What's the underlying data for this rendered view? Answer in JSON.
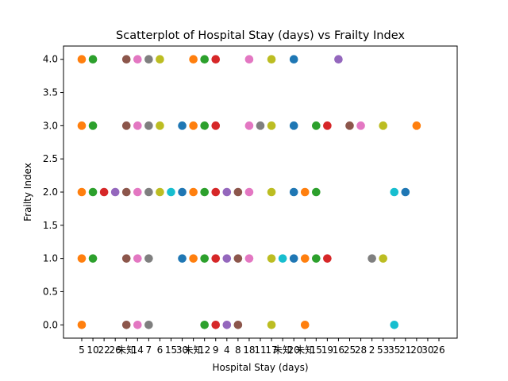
{
  "chart_data": {
    "type": "scatter",
    "title": "Scatterplot of Hospital Stay (days) vs Frailty Index",
    "xlabel": "Hospital Stay (days)",
    "ylabel": "Frailty Index",
    "x_categories": [
      "5",
      "10",
      "22",
      "26",
      "未知",
      "14",
      "7",
      "6",
      "15",
      "30",
      "未知",
      "12",
      "9",
      "4",
      "8",
      "18",
      "11",
      "17",
      "未知",
      "20",
      "未知",
      "15",
      "19",
      "16",
      "25",
      "28",
      "2",
      "53",
      "35",
      "21",
      "20",
      "30",
      "26"
    ],
    "x_tick_labels": [
      "5",
      "10",
      "22",
      "26",
      "未知",
      "14",
      "7",
      "6",
      "15",
      "30",
      "未知",
      "12",
      "9",
      "4",
      "8",
      "18",
      "11",
      "17",
      "未知",
      "20",
      "未知",
      "15",
      "19",
      "16",
      "25",
      "28",
      "2",
      "53",
      "35",
      "21",
      "20",
      "30",
      "26"
    ],
    "ylim": [
      -0.2,
      4.2
    ],
    "y_ticks": [
      "0.0",
      "0.5",
      "1.0",
      "1.5",
      "2.0",
      "2.5",
      "3.0",
      "3.5",
      "4.0"
    ],
    "y_tick_values": [
      0,
      0.5,
      1,
      1.5,
      2,
      2.5,
      3,
      3.5,
      4
    ],
    "colors": [
      "#1f77b4",
      "#ff7f0e",
      "#2ca02c",
      "#d62728",
      "#9467bd",
      "#8c564b",
      "#e377c2",
      "#7f7f7f",
      "#bcbd22",
      "#17becf"
    ],
    "points": [
      {
        "x": 0,
        "y": 4,
        "c": 1
      },
      {
        "x": 0,
        "y": 3,
        "c": 1
      },
      {
        "x": 0,
        "y": 2,
        "c": 1
      },
      {
        "x": 0,
        "y": 1,
        "c": 1
      },
      {
        "x": 0,
        "y": 0,
        "c": 1
      },
      {
        "x": 1,
        "y": 4,
        "c": 2
      },
      {
        "x": 1,
        "y": 3,
        "c": 2
      },
      {
        "x": 1,
        "y": 2,
        "c": 2
      },
      {
        "x": 1,
        "y": 1,
        "c": 2
      },
      {
        "x": 2,
        "y": 2,
        "c": 3
      },
      {
        "x": 3,
        "y": 2,
        "c": 4
      },
      {
        "x": 4,
        "y": 4,
        "c": 5
      },
      {
        "x": 4,
        "y": 3,
        "c": 5
      },
      {
        "x": 4,
        "y": 2,
        "c": 5
      },
      {
        "x": 4,
        "y": 1,
        "c": 5
      },
      {
        "x": 4,
        "y": 0,
        "c": 5
      },
      {
        "x": 5,
        "y": 4,
        "c": 6
      },
      {
        "x": 5,
        "y": 3,
        "c": 6
      },
      {
        "x": 5,
        "y": 2,
        "c": 6
      },
      {
        "x": 5,
        "y": 1,
        "c": 6
      },
      {
        "x": 5,
        "y": 0,
        "c": 6
      },
      {
        "x": 6,
        "y": 4,
        "c": 7
      },
      {
        "x": 6,
        "y": 3,
        "c": 7
      },
      {
        "x": 6,
        "y": 2,
        "c": 7
      },
      {
        "x": 6,
        "y": 1,
        "c": 7
      },
      {
        "x": 6,
        "y": 0,
        "c": 7
      },
      {
        "x": 7,
        "y": 4,
        "c": 8
      },
      {
        "x": 7,
        "y": 3,
        "c": 8
      },
      {
        "x": 7,
        "y": 2,
        "c": 8
      },
      {
        "x": 8,
        "y": 2,
        "c": 9
      },
      {
        "x": 9,
        "y": 3,
        "c": 0
      },
      {
        "x": 9,
        "y": 2,
        "c": 0
      },
      {
        "x": 9,
        "y": 1,
        "c": 0
      },
      {
        "x": 10,
        "y": 4,
        "c": 1
      },
      {
        "x": 10,
        "y": 3,
        "c": 1
      },
      {
        "x": 10,
        "y": 2,
        "c": 1
      },
      {
        "x": 10,
        "y": 1,
        "c": 1
      },
      {
        "x": 11,
        "y": 4,
        "c": 2
      },
      {
        "x": 11,
        "y": 3,
        "c": 2
      },
      {
        "x": 11,
        "y": 2,
        "c": 2
      },
      {
        "x": 11,
        "y": 1,
        "c": 2
      },
      {
        "x": 11,
        "y": 0,
        "c": 2
      },
      {
        "x": 12,
        "y": 4,
        "c": 3
      },
      {
        "x": 12,
        "y": 3,
        "c": 3
      },
      {
        "x": 12,
        "y": 2,
        "c": 3
      },
      {
        "x": 12,
        "y": 1,
        "c": 3
      },
      {
        "x": 12,
        "y": 0,
        "c": 3
      },
      {
        "x": 13,
        "y": 2,
        "c": 4
      },
      {
        "x": 13,
        "y": 1,
        "c": 4
      },
      {
        "x": 13,
        "y": 0,
        "c": 4
      },
      {
        "x": 14,
        "y": 2,
        "c": 5
      },
      {
        "x": 14,
        "y": 1,
        "c": 5
      },
      {
        "x": 14,
        "y": 0,
        "c": 5
      },
      {
        "x": 15,
        "y": 4,
        "c": 6
      },
      {
        "x": 15,
        "y": 3,
        "c": 6
      },
      {
        "x": 15,
        "y": 2,
        "c": 6
      },
      {
        "x": 15,
        "y": 1,
        "c": 6
      },
      {
        "x": 16,
        "y": 3,
        "c": 7
      },
      {
        "x": 17,
        "y": 4,
        "c": 8
      },
      {
        "x": 17,
        "y": 3,
        "c": 8
      },
      {
        "x": 17,
        "y": 2,
        "c": 8
      },
      {
        "x": 17,
        "y": 1,
        "c": 8
      },
      {
        "x": 17,
        "y": 0,
        "c": 8
      },
      {
        "x": 18,
        "y": 1,
        "c": 9
      },
      {
        "x": 19,
        "y": 4,
        "c": 0
      },
      {
        "x": 19,
        "y": 3,
        "c": 0
      },
      {
        "x": 19,
        "y": 2,
        "c": 0
      },
      {
        "x": 19,
        "y": 1,
        "c": 0
      },
      {
        "x": 20,
        "y": 2,
        "c": 1
      },
      {
        "x": 20,
        "y": 1,
        "c": 1
      },
      {
        "x": 20,
        "y": 0,
        "c": 1
      },
      {
        "x": 21,
        "y": 3,
        "c": 2
      },
      {
        "x": 21,
        "y": 2,
        "c": 2
      },
      {
        "x": 21,
        "y": 1,
        "c": 2
      },
      {
        "x": 22,
        "y": 3,
        "c": 3
      },
      {
        "x": 22,
        "y": 1,
        "c": 3
      },
      {
        "x": 23,
        "y": 4,
        "c": 4
      },
      {
        "x": 24,
        "y": 3,
        "c": 5
      },
      {
        "x": 25,
        "y": 3,
        "c": 6
      },
      {
        "x": 26,
        "y": 1,
        "c": 7
      },
      {
        "x": 27,
        "y": 3,
        "c": 8
      },
      {
        "x": 27,
        "y": 1,
        "c": 8
      },
      {
        "x": 28,
        "y": 2,
        "c": 9
      },
      {
        "x": 28,
        "y": 0,
        "c": 9
      },
      {
        "x": 29,
        "y": 2,
        "c": 0
      },
      {
        "x": 30,
        "y": 3,
        "c": 1
      }
    ]
  }
}
